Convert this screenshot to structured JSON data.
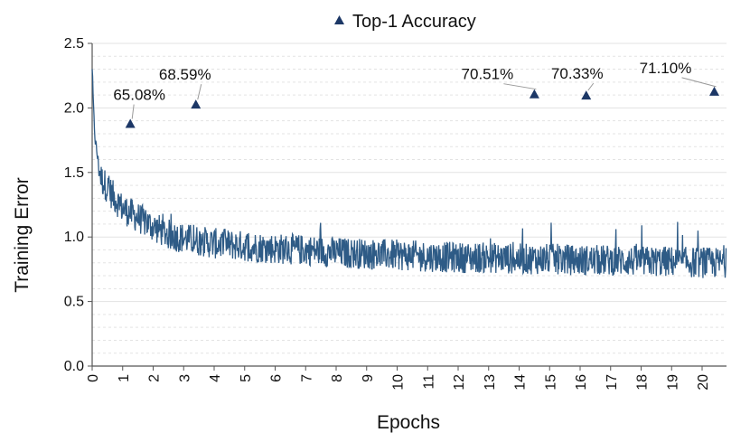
{
  "chart_data": {
    "type": "line",
    "xlabel": "Epochs",
    "ylabel": "Training Error",
    "xlim": [
      0,
      20.8
    ],
    "ylim": [
      0,
      2.5
    ],
    "x_ticks": [
      "0",
      "1",
      "2",
      "3",
      "4",
      "5",
      "6",
      "7",
      "8",
      "9",
      "10",
      "11",
      "12",
      "13",
      "14",
      "15",
      "16",
      "17",
      "18",
      "19",
      "20"
    ],
    "y_ticks": [
      "0.0",
      "0.5",
      "1.0",
      "1.5",
      "2.0",
      "2.5"
    ],
    "grid": "horizontal dashed",
    "series": [
      {
        "kind": "line",
        "color": "#2e5b86",
        "x": [
          0,
          0.05,
          0.1,
          0.2,
          0.3,
          0.5,
          0.75,
          1.0,
          1.5,
          2.0,
          2.5,
          3.0,
          4.0,
          5.0,
          6.0,
          7.0,
          8.0,
          9.0,
          10.0,
          11.0,
          12.0,
          13.0,
          14.0,
          15.0,
          16.0,
          17.0,
          18.0,
          19.0,
          20.0,
          20.8
        ],
        "y": [
          2.3,
          1.95,
          1.75,
          1.58,
          1.45,
          1.38,
          1.3,
          1.22,
          1.15,
          1.08,
          1.02,
          0.99,
          0.95,
          0.93,
          0.91,
          0.9,
          0.88,
          0.87,
          0.86,
          0.85,
          0.84,
          0.84,
          0.83,
          0.83,
          0.82,
          0.82,
          0.81,
          0.81,
          0.8,
          0.8
        ]
      },
      {
        "name": "Top-1 Accuracy",
        "kind": "markers",
        "marker": "triangle",
        "color": "#1c3766",
        "points": [
          {
            "x": 1.25,
            "y": 1.88,
            "label": "65.08%"
          },
          {
            "x": 3.4,
            "y": 2.03,
            "label": "68.59%"
          },
          {
            "x": 14.5,
            "y": 2.11,
            "label": "70.51%"
          },
          {
            "x": 16.2,
            "y": 2.1,
            "label": "70.33%"
          },
          {
            "x": 20.4,
            "y": 2.13,
            "label": "71.10%"
          }
        ]
      }
    ],
    "legend": {
      "position": "top-center"
    }
  }
}
